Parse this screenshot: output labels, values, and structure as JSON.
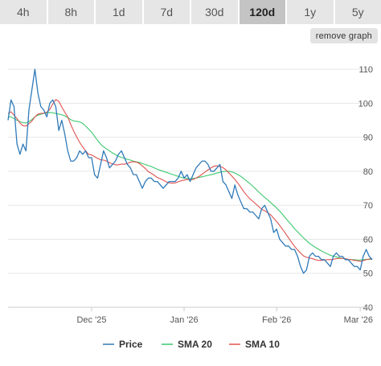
{
  "tabs": [
    {
      "label": "4h",
      "active": false
    },
    {
      "label": "8h",
      "active": false
    },
    {
      "label": "1d",
      "active": false
    },
    {
      "label": "7d",
      "active": false
    },
    {
      "label": "30d",
      "active": false
    },
    {
      "label": "120d",
      "active": true
    },
    {
      "label": "1y",
      "active": false
    },
    {
      "label": "5y",
      "active": false
    }
  ],
  "remove_graph_label": "remove graph",
  "chart_data": {
    "type": "line",
    "ylim": [
      40,
      115
    ],
    "yticks": [
      40,
      50,
      60,
      70,
      80,
      90,
      100,
      110
    ],
    "grid": true,
    "legend_position": "bottom",
    "x_tick_labels": [
      {
        "label": "Dec '25",
        "x": 1764547200
      },
      {
        "label": "Jan '26",
        "x": 1767225600
      },
      {
        "label": "Feb '26",
        "x": 1769904000
      },
      {
        "label": "Mar '26",
        "x": 1772323200
      }
    ],
    "xlim": [
      1762128000,
      1772668800
    ],
    "series": [
      {
        "name": "Price",
        "color": "#2f7ab9",
        "x": [
          1762128000,
          1762214400,
          1762300800,
          1762387200,
          1762473600,
          1762560000,
          1762646400,
          1762732800,
          1762819200,
          1762905600,
          1762992000,
          1763078400,
          1763164800,
          1763251200,
          1763337600,
          1763424000,
          1763510400,
          1763596800,
          1763683200,
          1763769600,
          1763856000,
          1763942400,
          1764028800,
          1764115200,
          1764201600,
          1764288000,
          1764374400,
          1764460800,
          1764547200,
          1764633600,
          1764720000,
          1764806400,
          1764892800,
          1764979200,
          1765065600,
          1765152000,
          1765238400,
          1765324800,
          1765411200,
          1765497600,
          1765584000,
          1765670400,
          1765756800,
          1765843200,
          1765929600,
          1766016000,
          1766102400,
          1766188800,
          1766275200,
          1766361600,
          1766448000,
          1766534400,
          1766620800,
          1766707200,
          1766793600,
          1766880000,
          1766966400,
          1767052800,
          1767139200,
          1767225600,
          1767312000,
          1767398400,
          1767484800,
          1767571200,
          1767657600,
          1767744000,
          1767830400,
          1767916800,
          1768003200,
          1768089600,
          1768176000,
          1768262400,
          1768348800,
          1768435200,
          1768521600,
          1768608000,
          1768694400,
          1768780800,
          1768867200,
          1768953600,
          1769040000,
          1769126400,
          1769212800,
          1769299200,
          1769385600,
          1769472000,
          1769558400,
          1769644800,
          1769731200,
          1769817600,
          1769904000,
          1769990400,
          1770076800,
          1770163200,
          1770249600,
          1770336000,
          1770422400,
          1770508800,
          1770595200,
          1770681600,
          1770768000,
          1770854400,
          1770940800,
          1771027200,
          1771113600,
          1771200000,
          1771286400,
          1771372800,
          1771459200,
          1771545600,
          1771632000,
          1771718400,
          1771804800,
          1771891200,
          1771977600,
          1772064000,
          1772150400,
          1772236800,
          1772323200,
          1772409600,
          1772496000,
          1772582400,
          1772668800
        ],
        "values": [
          95,
          101,
          99,
          88,
          85,
          88,
          86,
          98,
          104,
          110,
          103,
          99,
          98,
          96,
          100,
          101,
          99,
          92,
          95,
          91,
          86,
          83,
          83,
          84,
          86,
          85,
          86,
          84,
          84,
          79,
          78,
          82,
          86,
          84,
          81,
          82,
          83,
          85,
          86,
          84,
          82,
          81,
          79,
          79,
          77,
          75,
          77,
          78,
          78,
          77,
          77,
          76,
          75,
          76,
          77,
          77,
          77,
          78,
          80,
          78,
          79,
          77,
          79,
          81,
          82,
          83,
          83,
          82,
          80,
          80,
          81,
          82,
          77,
          76,
          74,
          72,
          76,
          73,
          71,
          69,
          69,
          68,
          68,
          67,
          66,
          69,
          70,
          68,
          66,
          62,
          63,
          60,
          59,
          58,
          58,
          57,
          57,
          55,
          52,
          50,
          51,
          55,
          56,
          55,
          55,
          54,
          54,
          53,
          52,
          55,
          56,
          55,
          55,
          54,
          54,
          53,
          52,
          52,
          51,
          55,
          57,
          55,
          54
        ]
      },
      {
        "name": "SMA 20",
        "color": "#3cc86e",
        "x": [
          1762128000,
          1762214400,
          1762300800,
          1762387200,
          1762473600,
          1762560000,
          1762646400,
          1762732800,
          1762819200,
          1762905600,
          1762992000,
          1763078400,
          1763164800,
          1763251200,
          1763337600,
          1763424000,
          1763510400,
          1763596800,
          1763683200,
          1763769600,
          1763856000,
          1763942400,
          1764028800,
          1764115200,
          1764201600,
          1764288000,
          1764374400,
          1764460800,
          1764547200,
          1764633600,
          1764720000,
          1764806400,
          1764892800,
          1764979200,
          1765065600,
          1765152000,
          1765238400,
          1765324800,
          1765411200,
          1765497600,
          1765584000,
          1765670400,
          1765756800,
          1765843200,
          1765929600,
          1766016000,
          1766102400,
          1766188800,
          1766275200,
          1766361600,
          1766448000,
          1766534400,
          1766620800,
          1766707200,
          1766793600,
          1766880000,
          1766966400,
          1767052800,
          1767139200,
          1767225600,
          1767312000,
          1767398400,
          1767484800,
          1767571200,
          1767657600,
          1767744000,
          1767830400,
          1767916800,
          1768003200,
          1768089600,
          1768176000,
          1768262400,
          1768348800,
          1768435200,
          1768521600,
          1768608000,
          1768694400,
          1768780800,
          1768867200,
          1768953600,
          1769040000,
          1769126400,
          1769212800,
          1769299200,
          1769385600,
          1769472000,
          1769558400,
          1769644800,
          1769731200,
          1769817600,
          1769904000,
          1769990400,
          1770076800,
          1770163200,
          1770249600,
          1770336000,
          1770422400,
          1770508800,
          1770595200,
          1770681600,
          1770768000,
          1770854400,
          1770940800,
          1771027200,
          1771113600,
          1771200000,
          1771286400,
          1771372800,
          1771459200,
          1771545600,
          1771632000,
          1771718400,
          1771804800,
          1771891200,
          1771977600,
          1772064000,
          1772150400,
          1772236800,
          1772323200,
          1772409600,
          1772496000,
          1772582400,
          1772668800
        ],
        "values": [
          96,
          96,
          95.5,
          95,
          94.6,
          94.3,
          94.2,
          94.6,
          95.2,
          96,
          96.5,
          96.8,
          97,
          97.2,
          97.3,
          97.2,
          97,
          96.8,
          96.6,
          96.3,
          95.8,
          95.2,
          94.8,
          94.7,
          94.5,
          94.1,
          93.3,
          92.4,
          91.5,
          90.3,
          89.1,
          88,
          87.2,
          86.6,
          86,
          85.4,
          84.9,
          84.4,
          84.1,
          83.8,
          83.5,
          83.3,
          83,
          82.8,
          82.6,
          82.3,
          82,
          81.7,
          81.4,
          81,
          80.6,
          80.3,
          80,
          79.7,
          79.4,
          79.1,
          78.8,
          78.5,
          78.2,
          78,
          77.9,
          77.8,
          77.9,
          78,
          78.2,
          78.4,
          78.6,
          78.8,
          79,
          79.2,
          79.5,
          79.7,
          79.9,
          80,
          80,
          79.8,
          79.5,
          79,
          78.5,
          77.8,
          77.1,
          76.4,
          75.6,
          74.8,
          73.9,
          73.1,
          72.3,
          71.6,
          70.8,
          70,
          69.2,
          68.3,
          67.3,
          66.2,
          65.2,
          64.2,
          63.1,
          62.2,
          61.3,
          60.4,
          59.6,
          58.8,
          58.2,
          57.6,
          57.1,
          56.6,
          56.1,
          55.7,
          55.3,
          55,
          54.8,
          54.6,
          54.4,
          54.2,
          54.1,
          54,
          54,
          53.9,
          53.9,
          54,
          54.1,
          54.1,
          54.1
        ]
      },
      {
        "name": "SMA 10",
        "color": "#e0524f",
        "x": [
          1762128000,
          1762214400,
          1762300800,
          1762387200,
          1762473600,
          1762560000,
          1762646400,
          1762732800,
          1762819200,
          1762905600,
          1762992000,
          1763078400,
          1763164800,
          1763251200,
          1763337600,
          1763424000,
          1763510400,
          1763596800,
          1763683200,
          1763769600,
          1763856000,
          1763942400,
          1764028800,
          1764115200,
          1764201600,
          1764288000,
          1764374400,
          1764460800,
          1764547200,
          1764633600,
          1764720000,
          1764806400,
          1764892800,
          1764979200,
          1765065600,
          1765152000,
          1765238400,
          1765324800,
          1765411200,
          1765497600,
          1765584000,
          1765670400,
          1765756800,
          1765843200,
          1765929600,
          1766016000,
          1766102400,
          1766188800,
          1766275200,
          1766361600,
          1766448000,
          1766534400,
          1766620800,
          1766707200,
          1766793600,
          1766880000,
          1766966400,
          1767052800,
          1767139200,
          1767225600,
          1767312000,
          1767398400,
          1767484800,
          1767571200,
          1767657600,
          1767744000,
          1767830400,
          1767916800,
          1768003200,
          1768089600,
          1768176000,
          1768262400,
          1768348800,
          1768435200,
          1768521600,
          1768608000,
          1768694400,
          1768780800,
          1768867200,
          1768953600,
          1769040000,
          1769126400,
          1769212800,
          1769299200,
          1769385600,
          1769472000,
          1769558400,
          1769644800,
          1769731200,
          1769817600,
          1769904000,
          1769990400,
          1770076800,
          1770163200,
          1770249600,
          1770336000,
          1770422400,
          1770508800,
          1770595200,
          1770681600,
          1770768000,
          1770854400,
          1770940800,
          1771027200,
          1771113600,
          1771200000,
          1771286400,
          1771372800,
          1771459200,
          1771545600,
          1771632000,
          1771718400,
          1771804800,
          1771891200,
          1771977600,
          1772064000,
          1772150400,
          1772236800,
          1772323200,
          1772409600,
          1772496000,
          1772582400,
          1772668800
        ],
        "values": [
          97,
          97.5,
          96.5,
          95.5,
          94.2,
          93.4,
          93.3,
          94,
          94.8,
          96,
          96.8,
          97,
          97.1,
          97.4,
          98.2,
          99.8,
          101.1,
          100.6,
          98.9,
          97.4,
          96,
          93.8,
          91.8,
          90.1,
          88.5,
          87.2,
          86,
          85,
          84.8,
          84.3,
          83.8,
          83.4,
          83.3,
          83,
          82.5,
          82.2,
          81.9,
          81.9,
          82.1,
          82.1,
          82.3,
          82.7,
          82.8,
          82.7,
          82.3,
          81.6,
          80.8,
          79.9,
          79.4,
          78.8,
          78.2,
          77.8,
          77.4,
          76.9,
          76.6,
          76.5,
          76.6,
          76.9,
          77.2,
          77.4,
          77.6,
          77.5,
          77.6,
          78,
          78.5,
          79.1,
          79.8,
          80.4,
          81,
          81.5,
          81.6,
          81.4,
          81.1,
          80.4,
          79.5,
          78.6,
          77.6,
          76.5,
          75.3,
          74,
          72.9,
          71.9,
          71.2,
          70.4,
          69.6,
          68.8,
          68.4,
          67.8,
          67.2,
          66.2,
          65.2,
          64.1,
          62.9,
          61.7,
          60.4,
          59.1,
          57.9,
          56.9,
          56,
          55.1,
          54.7,
          54.5,
          54.3,
          54,
          53.8,
          53.8,
          53.9,
          54,
          54,
          54.1,
          54.3,
          54.4,
          54.4,
          54.3,
          54.1,
          54,
          53.8,
          53.7,
          53.5,
          53.7,
          54,
          54.2,
          54.4
        ]
      }
    ]
  }
}
